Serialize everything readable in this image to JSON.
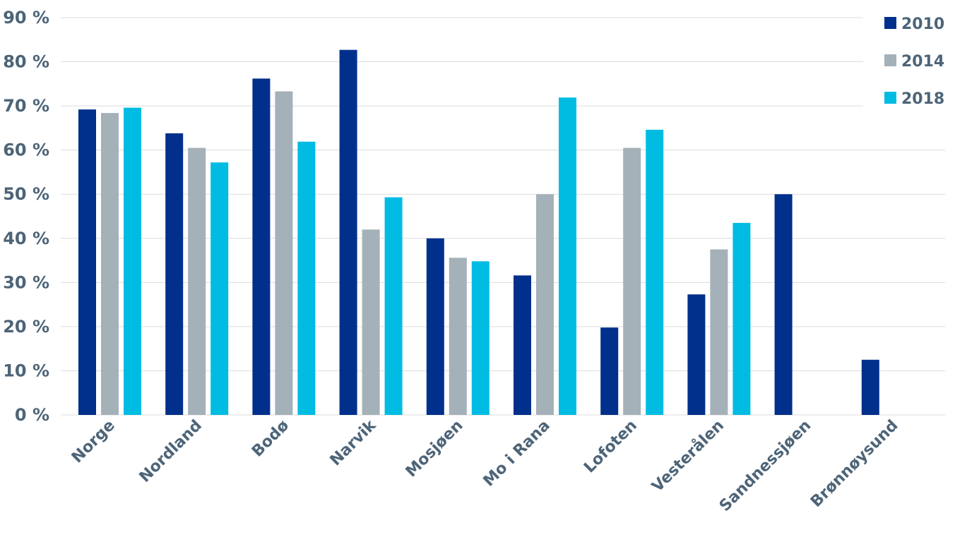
{
  "chart_data": {
    "type": "bar",
    "categories": [
      "Norge",
      "Nordland",
      "Bodø",
      "Narvik",
      "Mosjøen",
      "Mo i Rana",
      "Lofoten",
      "Vesterålen",
      "Sandnessjøen",
      "Brønnøysund"
    ],
    "series": [
      {
        "name": "2010",
        "color": "#00308b",
        "values": [
          69.2,
          63.8,
          76.2,
          82.7,
          40.0,
          31.6,
          19.8,
          27.3,
          50.0,
          12.5
        ]
      },
      {
        "name": "2014",
        "color": "#a5b1b9",
        "values": [
          68.4,
          60.5,
          73.3,
          42.0,
          35.6,
          50.0,
          60.5,
          37.5,
          null,
          null
        ]
      },
      {
        "name": "2018",
        "color": "#00bce3",
        "values": [
          69.6,
          57.2,
          61.9,
          49.3,
          34.8,
          71.9,
          64.6,
          43.5,
          null,
          null
        ]
      }
    ],
    "ylim": [
      0,
      90
    ],
    "yticks": [
      0,
      10,
      20,
      30,
      40,
      50,
      60,
      70,
      80,
      90
    ],
    "ytick_labels": [
      "0 %",
      "10 %",
      "20 %",
      "30 %",
      "40 %",
      "50 %",
      "60 %",
      "70 %",
      "80 %",
      "90 %"
    ],
    "grid": true,
    "legend_position": "top-right"
  }
}
